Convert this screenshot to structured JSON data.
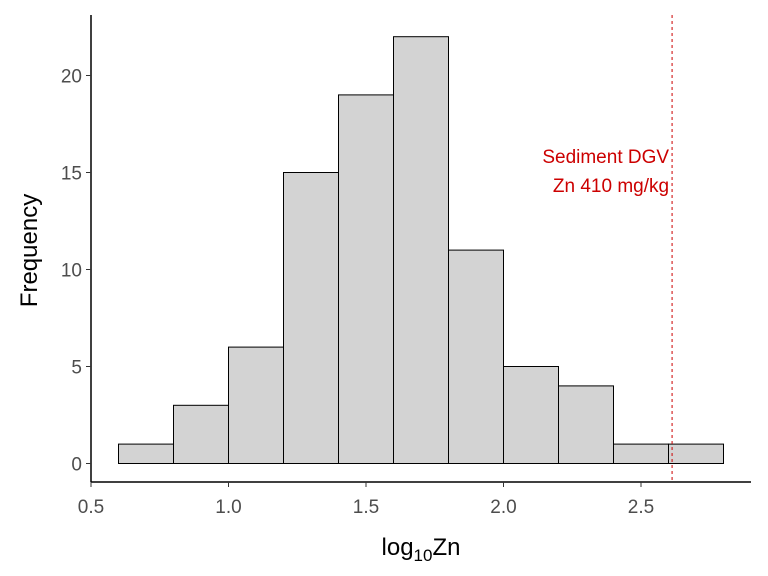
{
  "chart_data": {
    "type": "bar",
    "title": "",
    "xlabel": {
      "base": "log",
      "subscript": "10",
      "suffix": "Zn"
    },
    "ylabel": "Frequency",
    "xlim": [
      0.5,
      2.9
    ],
    "ylim": [
      0,
      23
    ],
    "xticks": [
      0.5,
      1.0,
      1.5,
      2.0,
      2.5
    ],
    "xtick_labels": [
      "0.5",
      "1.0",
      "1.5",
      "2.0",
      "2.5"
    ],
    "yticks": [
      0,
      5,
      10,
      15,
      20
    ],
    "ytick_labels": [
      "0",
      "5",
      "10",
      "15",
      "20"
    ],
    "bin_edges": [
      0.6,
      0.8,
      1.0,
      1.2,
      1.4,
      1.6,
      1.8,
      2.0,
      2.2,
      2.4,
      2.6,
      2.8
    ],
    "values": [
      1,
      3,
      6,
      15,
      19,
      22,
      11,
      5,
      4,
      1,
      1
    ],
    "bar_fill": "#d3d3d3",
    "bar_stroke": "#000000",
    "grid": false,
    "reference_line": {
      "x": 2.613,
      "style": "dashed",
      "color": "#cc0000",
      "label_lines": [
        "Sediment DGV",
        "Zn 410 mg/kg"
      ]
    }
  }
}
